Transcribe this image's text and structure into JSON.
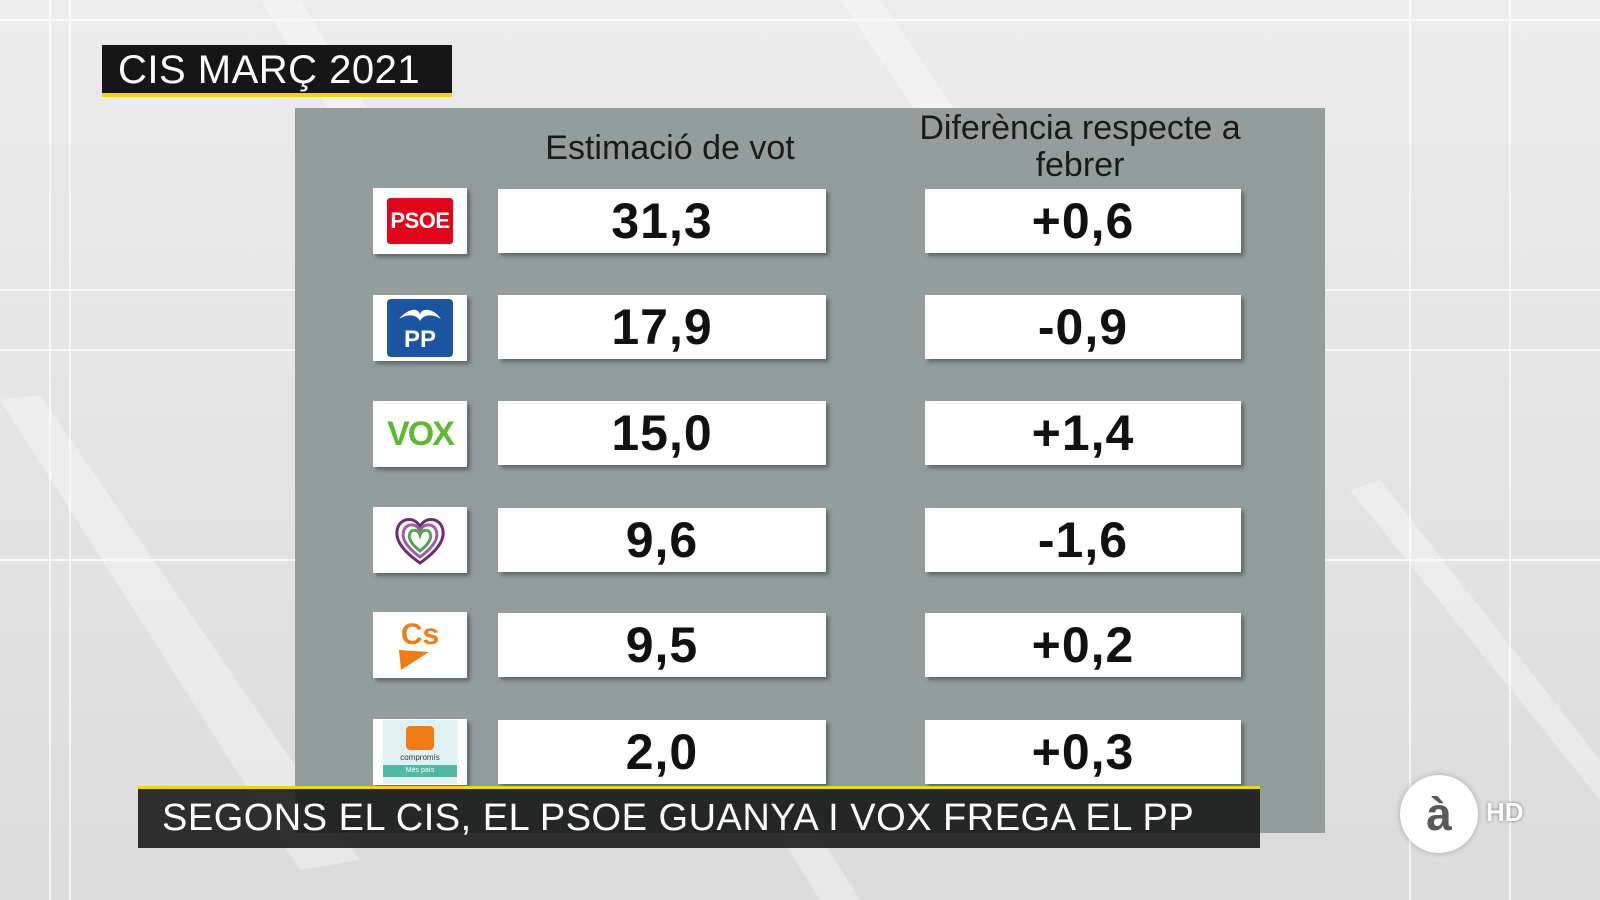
{
  "title": "CIS MARÇ 2021",
  "columns": {
    "vote_estimate": "Estimació de vot",
    "difference": "Diferència respecte a febrer"
  },
  "parties": [
    {
      "name": "PSOE",
      "logo": "psoe-logo",
      "vote": "31,3",
      "diff": "+0,6"
    },
    {
      "name": "PP",
      "logo": "pp-logo",
      "vote": "17,9",
      "diff": "-0,9"
    },
    {
      "name": "VOX",
      "logo": "vox-logo",
      "vote": "15,0",
      "diff": "+1,4"
    },
    {
      "name": "Unidas Podemos",
      "logo": "podemos-heart-logo",
      "vote": "9,6",
      "diff": "-1,6"
    },
    {
      "name": "Cs",
      "logo": "ciudadanos-logo",
      "vote": "9,5",
      "diff": "+0,2"
    },
    {
      "name": "Compromís",
      "logo": "compromis-logo",
      "vote": "2,0",
      "diff": "+0,3"
    }
  ],
  "logo_text": {
    "psoe": "PSOE",
    "pp": "PP",
    "vox": "VOX",
    "cs": "Cs",
    "compromis": "compromís",
    "compromis_sub": "Més país"
  },
  "headline": "SEGONS EL CIS, EL PSOE GUANYA I VOX FREGA EL PP",
  "channel": {
    "logo": "à",
    "badge": "HD"
  },
  "colors": {
    "panel": "#929d9c",
    "title_bg": "#161616",
    "accent": "#f5d400",
    "psoe": "#e3061b",
    "pp": "#1b54a0",
    "vox": "#5bba2f",
    "cs": "#f07c14",
    "compromis": "#4fb9a6"
  }
}
